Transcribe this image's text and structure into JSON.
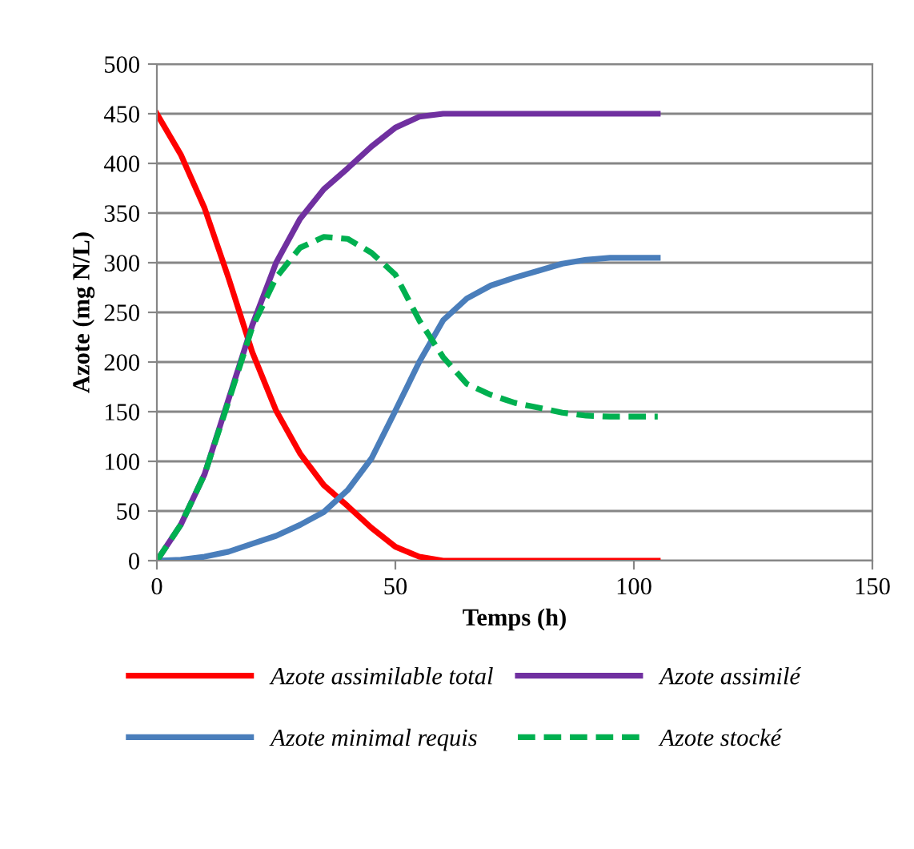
{
  "chart_data": {
    "type": "line",
    "xlabel": "Temps (h)",
    "ylabel": "Azote (mg N/L)",
    "x": [
      0,
      5,
      10,
      15,
      20,
      25,
      30,
      35,
      40,
      45,
      50,
      55,
      60,
      65,
      70,
      75,
      80,
      85,
      90,
      95,
      100,
      105
    ],
    "series": [
      {
        "name": "Azote assimilable total",
        "color": "#ff0000",
        "values": [
          450,
          409,
          355,
          285,
          210,
          151,
          108,
          76,
          55,
          33,
          14,
          4,
          0,
          0,
          0,
          0,
          0,
          0,
          0,
          0,
          0,
          0
        ]
      },
      {
        "name": "Azote minimal requis",
        "color": "#4a7ebb",
        "values": [
          0,
          1,
          4,
          9,
          17,
          25,
          36,
          49,
          71,
          103,
          151,
          200,
          242,
          264,
          277,
          285,
          292,
          299,
          303,
          305,
          305,
          305
        ]
      },
      {
        "name": "Azote assimilé",
        "color": "#7030a0",
        "values": [
          0,
          36,
          87,
          162,
          237,
          300,
          344,
          374,
          395,
          417,
          436,
          447,
          450,
          450,
          450,
          450,
          450,
          450,
          450,
          450,
          450,
          450
        ]
      },
      {
        "name": "Azote stocké",
        "color": "#00b050",
        "line_style": "dashed",
        "values": [
          0,
          36,
          87,
          160,
          235,
          285,
          315,
          326,
          324,
          310,
          288,
          242,
          205,
          178,
          167,
          159,
          154,
          149,
          146,
          145,
          145,
          145
        ]
      }
    ],
    "xlim": [
      0,
      150
    ],
    "xticks": [
      0,
      50,
      100,
      150
    ],
    "ylim": [
      0,
      500
    ],
    "yticks": [
      0,
      50,
      100,
      150,
      200,
      250,
      300,
      350,
      400,
      450,
      500
    ],
    "grid": "y",
    "legend": "bottom"
  }
}
